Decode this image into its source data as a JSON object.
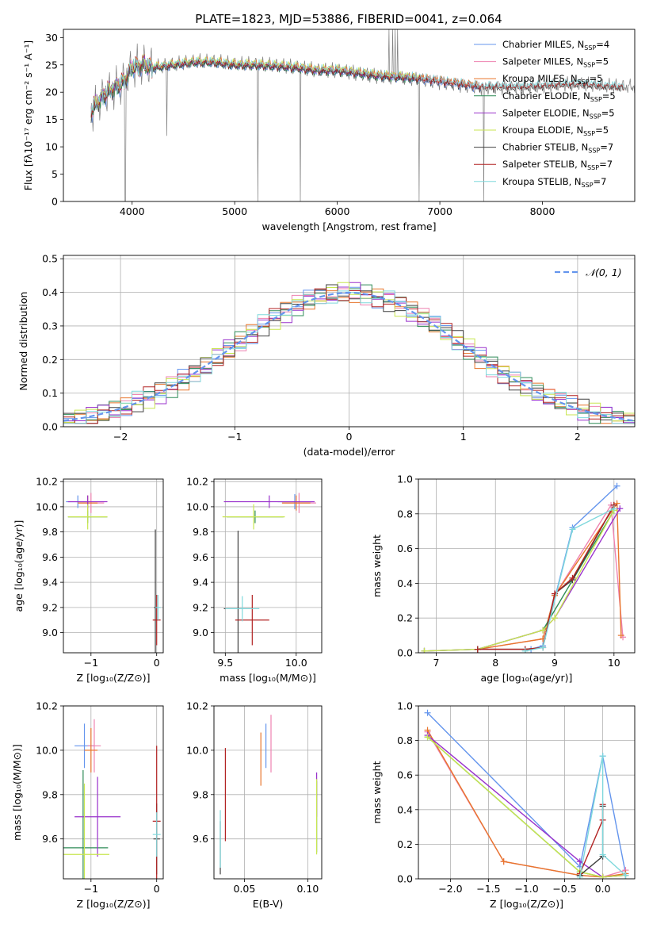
{
  "figure_title": "PLATE=1823, MJD=53886, FIBERID=0041, z=0.064",
  "colors": {
    "Chabrier MILES": "#6495ed",
    "Salpeter MILES": "#ee82b0",
    "Kroupa MILES": "#e8762c",
    "Chabrier ELODIE": "#2e8b57",
    "Salpeter ELODIE": "#9932cc",
    "Kroupa ELODIE": "#c8e650",
    "Chabrier STELIB": "#404040",
    "Salpeter STELIB": "#b22222",
    "Kroupa STELIB": "#7fd8dc",
    "data": "#808080",
    "grid": "#b0b0b0"
  },
  "chart_data": [
    {
      "id": "spectrum",
      "type": "line",
      "title": "",
      "xlabel": "wavelength [Angstrom, rest frame]",
      "ylabel": "Flux [fλ10⁻¹⁷ erg cm⁻² s⁻¹ A⁻¹]",
      "xlim": [
        3330,
        8900
      ],
      "ylim": [
        0,
        31.5
      ],
      "xticks": [
        4000,
        5000,
        6000,
        7000,
        8000
      ],
      "yticks": [
        0,
        5,
        10,
        15,
        20,
        25,
        30
      ],
      "grid": false,
      "legend_position": "top-right",
      "legend": [
        "Chabrier MILES, N_SSP=4",
        "Salpeter MILES, N_SSP=5",
        "Kroupa MILES, N_SSP=5",
        "Chabrier ELODIE, N_SSP=5",
        "Salpeter ELODIE, N_SSP=5",
        "Kroupa ELODIE, N_SSP=5",
        "Chabrier STELIB, N_SSP=7",
        "Salpeter STELIB, N_SSP=7",
        "Kroupa STELIB, N_SSP=7"
      ],
      "continuum": {
        "wavelength": [
          3600,
          3700,
          3800,
          3900,
          4000,
          4100,
          4200,
          4400,
          4600,
          4800,
          5000,
          5200,
          5400,
          5600,
          5800,
          6000,
          6200,
          6400,
          6600,
          6800,
          7000,
          7200,
          7400,
          7600,
          7800,
          8000,
          8200,
          8400,
          8600,
          8800
        ],
        "flux": [
          16.5,
          19,
          20.5,
          21.5,
          24.5,
          25,
          24.5,
          25,
          25.5,
          25.5,
          25,
          25,
          24.8,
          24.5,
          24,
          24,
          23.5,
          23,
          22.8,
          22.5,
          22,
          21.5,
          21,
          21,
          21,
          21.2,
          21.5,
          21.5,
          21.2,
          21
        ]
      },
      "absorption_dips": [
        {
          "wavelength": 3933,
          "flux": 0
        },
        {
          "wavelength": 4340,
          "flux": 12
        },
        {
          "wavelength": 5225,
          "flux": 0
        },
        {
          "wavelength": 5640,
          "flux": 0
        },
        {
          "wavelength": 6800,
          "flux": 0
        },
        {
          "wavelength": 7430,
          "flux": 0
        }
      ],
      "emission_spikes": [
        {
          "wavelength": 6505,
          "flux": 31.5
        },
        {
          "wavelength": 6540,
          "flux": 31.5
        },
        {
          "wavelength": 6565,
          "flux": 31.5
        },
        {
          "wavelength": 6590,
          "flux": 31.5
        }
      ]
    },
    {
      "id": "residuals",
      "type": "line",
      "title": "",
      "xlabel": "(data-model)/error",
      "ylabel": "Normed distribution",
      "xlim": [
        -2.5,
        2.5
      ],
      "ylim": [
        0,
        0.51
      ],
      "xticks": [
        -2,
        -1,
        0,
        1,
        2
      ],
      "yticks": [
        0.0,
        0.1,
        0.2,
        0.3,
        0.4,
        0.5
      ],
      "grid": true,
      "legend_position": "top-right",
      "gaussian_label": "𝒩(0, 1)",
      "bin_width": 0.1
    },
    {
      "id": "age-vs-Z",
      "type": "scatter",
      "xlabel": "Z [log₁₀(Z/Z⊙)]",
      "ylabel": "age  [log₁₀(age/yr)]",
      "xlim": [
        -1.42,
        0.1
      ],
      "ylim": [
        8.84,
        10.22
      ],
      "xticks": [
        -1,
        0
      ],
      "yticks": [
        9.0,
        9.2,
        9.4,
        9.6,
        9.8,
        10.0,
        10.2
      ],
      "grid": true,
      "points": [
        {
          "model": "Chabrier MILES",
          "x": -1.2,
          "y": 10.04,
          "xerr": 0.18,
          "yerr": 0.05
        },
        {
          "model": "Salpeter MILES",
          "x": -1.0,
          "y": 10.03,
          "xerr": 0.2,
          "yerr": 0.08
        },
        {
          "model": "Kroupa MILES",
          "x": -1.05,
          "y": 10.03,
          "xerr": 0.15,
          "yerr": 0.06
        },
        {
          "model": "Chabrier ELODIE",
          "x": -1.05,
          "y": 9.92,
          "xerr": 0.3,
          "yerr": 0.05
        },
        {
          "model": "Salpeter ELODIE",
          "x": -1.05,
          "y": 10.04,
          "xerr": 0.3,
          "yerr": 0.05
        },
        {
          "model": "Kroupa ELODIE",
          "x": -1.05,
          "y": 9.92,
          "xerr": 0.3,
          "yerr": 0.1
        },
        {
          "model": "Chabrier STELIB",
          "x": -0.02,
          "y": 9.2,
          "xerr": 0.02,
          "yerr": 0.62
        },
        {
          "model": "Salpeter STELIB",
          "x": 0.0,
          "y": 9.1,
          "xerr": 0.06,
          "yerr": 0.2
        },
        {
          "model": "Kroupa STELIB",
          "x": 0.02,
          "y": 9.2,
          "xerr": 0.04,
          "yerr": 0.1
        }
      ]
    },
    {
      "id": "age-vs-mass",
      "type": "scatter",
      "xlabel": "mass [log₁₀(M/M⊙)]",
      "ylabel": "",
      "xlim": [
        9.42,
        10.18
      ],
      "ylim": [
        8.84,
        10.22
      ],
      "xticks": [
        9.5,
        10.0
      ],
      "yticks": [
        9.0,
        9.2,
        9.4,
        9.6,
        9.8,
        10.0,
        10.2
      ],
      "grid": true,
      "points": [
        {
          "model": "Chabrier MILES",
          "x": 9.99,
          "y": 10.04,
          "xerr": 0.12,
          "yerr": 0.06
        },
        {
          "model": "Salpeter MILES",
          "x": 10.02,
          "y": 10.03,
          "xerr": 0.12,
          "yerr": 0.08
        },
        {
          "model": "Kroupa MILES",
          "x": 10.0,
          "y": 10.03,
          "xerr": 0.1,
          "yerr": 0.06
        },
        {
          "model": "Chabrier ELODIE",
          "x": 9.71,
          "y": 9.92,
          "xerr": 0.2,
          "yerr": 0.05
        },
        {
          "model": "Salpeter ELODIE",
          "x": 9.81,
          "y": 10.04,
          "xerr": 0.32,
          "yerr": 0.05
        },
        {
          "model": "Kroupa ELODIE",
          "x": 9.7,
          "y": 9.92,
          "xerr": 0.22,
          "yerr": 0.1
        },
        {
          "model": "Chabrier STELIB",
          "x": 9.59,
          "y": 9.19,
          "xerr": 0.1,
          "yerr": 0.62
        },
        {
          "model": "Salpeter STELIB",
          "x": 9.69,
          "y": 9.1,
          "xerr": 0.12,
          "yerr": 0.2
        },
        {
          "model": "Kroupa STELIB",
          "x": 9.62,
          "y": 9.19,
          "xerr": 0.12,
          "yerr": 0.1
        }
      ]
    },
    {
      "id": "weight-vs-age",
      "type": "line",
      "xlabel": "age  [log₁₀(age/yr)]",
      "ylabel": "mass weight",
      "xlim": [
        6.7,
        10.35
      ],
      "ylim": [
        0,
        1.0
      ],
      "xticks": [
        7,
        8,
        9,
        10
      ],
      "yticks": [
        0.0,
        0.2,
        0.4,
        0.6,
        0.8,
        1.0
      ],
      "grid": true,
      "series": [
        {
          "model": "Chabrier MILES",
          "x": [
            8.6,
            8.8,
            9.3,
            10.05
          ],
          "y": [
            0.02,
            0.04,
            0.72,
            0.96
          ]
        },
        {
          "model": "Salpeter MILES",
          "x": [
            7.7,
            8.8,
            9.0,
            9.95,
            10.15
          ],
          "y": [
            0.02,
            0.08,
            0.33,
            0.85,
            0.09
          ]
        },
        {
          "model": "Kroupa MILES",
          "x": [
            7.7,
            8.8,
            9.0,
            10.05,
            10.12
          ],
          "y": [
            0.02,
            0.08,
            0.33,
            0.86,
            0.1
          ]
        },
        {
          "model": "Chabrier ELODIE",
          "x": [
            6.8,
            7.7,
            8.8,
            10.0
          ],
          "y": [
            0.01,
            0.02,
            0.13,
            0.82
          ]
        },
        {
          "model": "Salpeter ELODIE",
          "x": [
            6.8,
            7.7,
            8.8,
            9.0,
            10.1
          ],
          "y": [
            0.01,
            0.02,
            0.13,
            0.2,
            0.83
          ]
        },
        {
          "model": "Kroupa ELODIE",
          "x": [
            6.8,
            7.7,
            8.8,
            9.0,
            10.0
          ],
          "y": [
            0.01,
            0.02,
            0.13,
            0.2,
            0.82
          ]
        },
        {
          "model": "Chabrier STELIB",
          "x": [
            7.7,
            8.5,
            8.8,
            9.0,
            9.3,
            10.0
          ],
          "y": [
            0.02,
            0.02,
            0.03,
            0.34,
            0.42,
            0.85
          ]
        },
        {
          "model": "Salpeter STELIB",
          "x": [
            7.7,
            8.5,
            8.8,
            9.0,
            9.3,
            10.0
          ],
          "y": [
            0.02,
            0.02,
            0.03,
            0.34,
            0.43,
            0.85
          ]
        },
        {
          "model": "Kroupa STELIB",
          "x": [
            8.5,
            8.8,
            9.3,
            10.0
          ],
          "y": [
            0.01,
            0.03,
            0.71,
            0.83
          ]
        }
      ]
    },
    {
      "id": "mass-vs-Z",
      "type": "scatter",
      "xlabel": "Z [log₁₀(Z/Z⊙)]",
      "ylabel": "mass [log₁₀(M/M⊙)]",
      "xlim": [
        -1.42,
        0.1
      ],
      "ylim": [
        9.42,
        10.2
      ],
      "xticks": [
        -1,
        0
      ],
      "yticks": [
        9.6,
        9.8,
        10.0,
        10.2
      ],
      "grid": true,
      "points": [
        {
          "model": "Chabrier MILES",
          "x": -1.1,
          "y": 10.02,
          "xerr": 0.15,
          "yerr": 0.1
        },
        {
          "model": "Salpeter MILES",
          "x": -0.95,
          "y": 10.02,
          "xerr": 0.1,
          "yerr": 0.12
        },
        {
          "model": "Kroupa MILES",
          "x": -1.0,
          "y": 10.0,
          "xerr": 0.1,
          "yerr": 0.1
        },
        {
          "model": "Chabrier ELODIE",
          "x": -1.12,
          "y": 9.56,
          "xerr": 0.38,
          "yerr": 0.35
        },
        {
          "model": "Salpeter ELODIE",
          "x": -0.9,
          "y": 9.7,
          "xerr": 0.35,
          "yerr": 0.18
        },
        {
          "model": "Kroupa ELODIE",
          "x": -1.1,
          "y": 9.53,
          "xerr": 0.38,
          "yerr": 0.32
        },
        {
          "model": "Chabrier STELIB",
          "x": 0.0,
          "y": 9.6,
          "xerr": 0.05,
          "yerr": 0.16
        },
        {
          "model": "Salpeter STELIB",
          "x": 0.0,
          "y": 9.68,
          "xerr": 0.06,
          "yerr": 0.34
        },
        {
          "model": "Kroupa STELIB",
          "x": 0.0,
          "y": 9.62,
          "xerr": 0.06,
          "yerr": 0.1
        }
      ]
    },
    {
      "id": "mass-vs-ebv",
      "type": "scatter",
      "xlabel": "E(B-V)",
      "ylabel": "",
      "xlim": [
        0.026,
        0.111
      ],
      "ylim": [
        9.42,
        10.2
      ],
      "xticks": [
        0.05,
        0.1
      ],
      "yticks": [
        9.6,
        9.8,
        10.0,
        10.2
      ],
      "grid": true,
      "points": [
        {
          "model": "Chabrier MILES",
          "x": 0.067,
          "y": 10.02,
          "xerr": 0.0,
          "yerr": 0.1
        },
        {
          "model": "Salpeter MILES",
          "x": 0.071,
          "y": 10.03,
          "xerr": 0.0,
          "yerr": 0.13
        },
        {
          "model": "Kroupa MILES",
          "x": 0.063,
          "y": 9.96,
          "xerr": 0.0,
          "yerr": 0.12
        },
        {
          "model": "Chabrier ELODIE",
          "x": 0.107,
          "y": 9.7,
          "xerr": 0.0,
          "yerr": 0.16
        },
        {
          "model": "Salpeter ELODIE",
          "x": 0.107,
          "y": 9.8,
          "xerr": 0.0,
          "yerr": 0.1
        },
        {
          "model": "Kroupa ELODIE",
          "x": 0.107,
          "y": 9.7,
          "xerr": 0.0,
          "yerr": 0.17
        },
        {
          "model": "Chabrier STELIB",
          "x": 0.031,
          "y": 9.56,
          "xerr": 0.0,
          "yerr": 0.12
        },
        {
          "model": "Salpeter STELIB",
          "x": 0.035,
          "y": 9.8,
          "xerr": 0.0,
          "yerr": 0.21
        },
        {
          "model": "Kroupa STELIB",
          "x": 0.031,
          "y": 9.6,
          "xerr": 0.0,
          "yerr": 0.13
        }
      ]
    },
    {
      "id": "weight-vs-Z",
      "type": "line",
      "xlabel": "Z [log₁₀(Z/Z⊙)]",
      "ylabel": "mass weight",
      "xlim": [
        -2.42,
        0.42
      ],
      "ylim": [
        0,
        1.0
      ],
      "xticks": [
        -2.0,
        -1.5,
        -1.0,
        -0.5,
        0.0
      ],
      "yticks": [
        0.0,
        0.2,
        0.4,
        0.6,
        0.8,
        1.0
      ],
      "grid": true,
      "series": [
        {
          "model": "Chabrier MILES",
          "x": [
            -2.3,
            -0.3,
            0.0,
            0.3
          ],
          "y": [
            0.96,
            0.07,
            0.71,
            0.03
          ]
        },
        {
          "model": "Salpeter MILES",
          "x": [
            -2.3,
            -1.3,
            -0.3,
            0.0,
            0.3
          ],
          "y": [
            0.85,
            0.1,
            0.02,
            0.01,
            0.05
          ]
        },
        {
          "model": "Kroupa MILES",
          "x": [
            -2.3,
            -1.3,
            -0.3,
            0.0,
            0.3
          ],
          "y": [
            0.86,
            0.1,
            0.02,
            0.01,
            0.03
          ]
        },
        {
          "model": "Chabrier ELODIE",
          "x": [
            -2.3,
            -0.3,
            0.0,
            0.3
          ],
          "y": [
            0.82,
            0.04,
            0.01,
            0.02
          ]
        },
        {
          "model": "Salpeter ELODIE",
          "x": [
            -2.3,
            -0.3,
            0.0,
            0.3
          ],
          "y": [
            0.83,
            0.1,
            0.01,
            0.02
          ]
        },
        {
          "model": "Kroupa ELODIE",
          "x": [
            -2.3,
            -0.3,
            0.0,
            0.3
          ],
          "y": [
            0.82,
            0.04,
            0.01,
            0.02
          ]
        },
        {
          "model": "Chabrier STELIB",
          "x": [
            -0.3,
            0.0,
            0.0
          ],
          "y": [
            0.02,
            0.13,
            0.42
          ]
        },
        {
          "model": "Salpeter STELIB",
          "x": [
            -0.3,
            0.0,
            0.0
          ],
          "y": [
            0.03,
            0.34,
            0.43
          ]
        },
        {
          "model": "Kroupa STELIB",
          "x": [
            -0.3,
            0.0,
            0.0,
            0.3
          ],
          "y": [
            0.01,
            0.71,
            0.14,
            0.02
          ]
        }
      ]
    }
  ]
}
